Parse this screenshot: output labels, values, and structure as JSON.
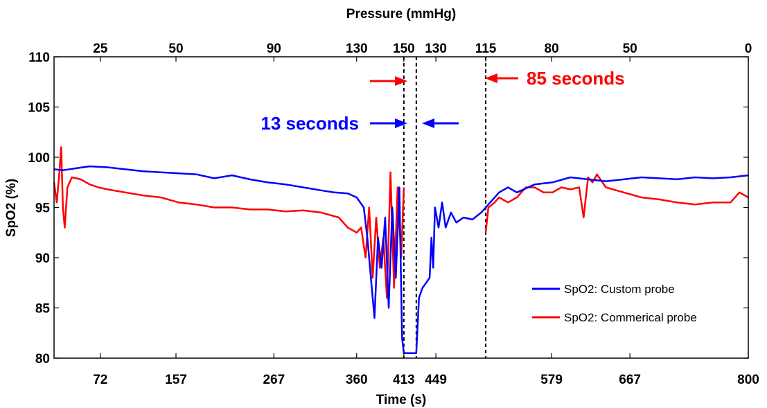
{
  "chart_data": {
    "type": "line",
    "title": "",
    "xlabel": "Time (s)",
    "ylabel": "SpO2 (%)",
    "x2label": "Pressure (mmHg)",
    "xlim": [
      20,
      800
    ],
    "ylim": [
      80,
      110
    ],
    "yticks": [
      80,
      85,
      90,
      95,
      100,
      105,
      110
    ],
    "xticks": [
      {
        "value": 72,
        "label": "72"
      },
      {
        "value": 157,
        "label": "157"
      },
      {
        "value": 267,
        "label": "267"
      },
      {
        "value": 360,
        "label": "360"
      },
      {
        "value": 413,
        "label": "413"
      },
      {
        "value": 449,
        "label": "449"
      },
      {
        "value": 579,
        "label": "579"
      },
      {
        "value": 667,
        "label": "667"
      },
      {
        "value": 800,
        "label": "800"
      }
    ],
    "x2ticks": [
      {
        "value": 72,
        "label": "25"
      },
      {
        "value": 157,
        "label": "50"
      },
      {
        "value": 267,
        "label": "90"
      },
      {
        "value": 360,
        "label": "130"
      },
      {
        "value": 413,
        "label": "150"
      },
      {
        "value": 449,
        "label": "130"
      },
      {
        "value": 505,
        "label": "115"
      },
      {
        "value": 579,
        "label": "80"
      },
      {
        "value": 667,
        "label": "50"
      },
      {
        "value": 800,
        "label": "0"
      }
    ],
    "vlines": [
      413,
      427,
      505
    ],
    "grid": false,
    "legend_position": "bottom-right",
    "colors": {
      "custom": "#0000ff",
      "commercial": "#ff0000",
      "axes": "#000000"
    },
    "annotations": [
      {
        "text": "13 seconds",
        "color": "#0000ff",
        "value_s": 13
      },
      {
        "text": "85 seconds",
        "color": "#ff0000",
        "value_s": 85
      }
    ],
    "series": [
      {
        "name": "SpO2: Custom probe",
        "color": "#0000ff",
        "points": [
          [
            20,
            98.8
          ],
          [
            30,
            98.7
          ],
          [
            45,
            98.9
          ],
          [
            60,
            99.1
          ],
          [
            80,
            99.0
          ],
          [
            100,
            98.8
          ],
          [
            120,
            98.6
          ],
          [
            140,
            98.5
          ],
          [
            160,
            98.4
          ],
          [
            180,
            98.3
          ],
          [
            200,
            97.9
          ],
          [
            220,
            98.2
          ],
          [
            240,
            97.8
          ],
          [
            260,
            97.5
          ],
          [
            280,
            97.3
          ],
          [
            300,
            97.0
          ],
          [
            320,
            96.7
          ],
          [
            335,
            96.5
          ],
          [
            350,
            96.4
          ],
          [
            360,
            96.0
          ],
          [
            368,
            95.0
          ],
          [
            372,
            92.0
          ],
          [
            376,
            88.0
          ],
          [
            380,
            84.0
          ],
          [
            384,
            92.0
          ],
          [
            388,
            89.0
          ],
          [
            392,
            94.0
          ],
          [
            396,
            85.0
          ],
          [
            400,
            95.0
          ],
          [
            404,
            88.0
          ],
          [
            408,
            97.0
          ],
          [
            411,
            82.0
          ],
          [
            413,
            80.5
          ],
          [
            427,
            80.5
          ],
          [
            430,
            86.0
          ],
          [
            434,
            87.0
          ],
          [
            438,
            87.5
          ],
          [
            442,
            88.0
          ],
          [
            444,
            92.0
          ],
          [
            446,
            89.0
          ],
          [
            448,
            95.0
          ],
          [
            452,
            93.0
          ],
          [
            456,
            95.5
          ],
          [
            460,
            93.0
          ],
          [
            466,
            94.5
          ],
          [
            472,
            93.5
          ],
          [
            480,
            94.0
          ],
          [
            490,
            93.8
          ],
          [
            500,
            94.5
          ],
          [
            510,
            95.5
          ],
          [
            520,
            96.5
          ],
          [
            530,
            97.0
          ],
          [
            540,
            96.5
          ],
          [
            560,
            97.3
          ],
          [
            580,
            97.5
          ],
          [
            600,
            98.0
          ],
          [
            620,
            97.8
          ],
          [
            640,
            97.6
          ],
          [
            660,
            97.8
          ],
          [
            680,
            98.0
          ],
          [
            700,
            97.9
          ],
          [
            720,
            97.8
          ],
          [
            740,
            98.0
          ],
          [
            760,
            97.9
          ],
          [
            780,
            98.0
          ],
          [
            800,
            98.2
          ]
        ]
      },
      {
        "name": "SpO2: Commerical probe",
        "color": "#ff0000",
        "points": [
          [
            20,
            97.5
          ],
          [
            23,
            95.5
          ],
          [
            26,
            98.5
          ],
          [
            28,
            101.0
          ],
          [
            30,
            95.0
          ],
          [
            32,
            93.0
          ],
          [
            35,
            97.0
          ],
          [
            40,
            98.0
          ],
          [
            50,
            97.8
          ],
          [
            60,
            97.3
          ],
          [
            70,
            97.0
          ],
          [
            80,
            96.8
          ],
          [
            100,
            96.5
          ],
          [
            120,
            96.2
          ],
          [
            140,
            96.0
          ],
          [
            160,
            95.5
          ],
          [
            180,
            95.3
          ],
          [
            200,
            95.0
          ],
          [
            220,
            95.0
          ],
          [
            240,
            94.8
          ],
          [
            260,
            94.8
          ],
          [
            280,
            94.6
          ],
          [
            300,
            94.7
          ],
          [
            320,
            94.5
          ],
          [
            340,
            94.0
          ],
          [
            350,
            93.0
          ],
          [
            360,
            92.5
          ],
          [
            365,
            93.0
          ],
          [
            370,
            90.0
          ],
          [
            374,
            95.0
          ],
          [
            378,
            88.0
          ],
          [
            382,
            94.0
          ],
          [
            386,
            89.0
          ],
          [
            390,
            92.0
          ],
          [
            394,
            86.0
          ],
          [
            398,
            98.5
          ],
          [
            402,
            87.0
          ],
          [
            406,
            97.0
          ],
          [
            410,
            90.0
          ],
          [
            413,
            97.0
          ],
          [
            505,
            92.5
          ],
          [
            508,
            95.0
          ],
          [
            515,
            95.5
          ],
          [
            520,
            96.0
          ],
          [
            530,
            95.5
          ],
          [
            540,
            96.0
          ],
          [
            550,
            97.0
          ],
          [
            560,
            97.0
          ],
          [
            570,
            96.5
          ],
          [
            580,
            96.5
          ],
          [
            590,
            97.0
          ],
          [
            600,
            96.8
          ],
          [
            610,
            97.0
          ],
          [
            615,
            94.0
          ],
          [
            620,
            98.0
          ],
          [
            625,
            97.5
          ],
          [
            630,
            98.3
          ],
          [
            640,
            97.0
          ],
          [
            660,
            96.5
          ],
          [
            680,
            96.0
          ],
          [
            700,
            95.8
          ],
          [
            720,
            95.5
          ],
          [
            740,
            95.3
          ],
          [
            760,
            95.5
          ],
          [
            780,
            95.5
          ],
          [
            790,
            96.5
          ],
          [
            800,
            96.0
          ]
        ]
      }
    ]
  }
}
